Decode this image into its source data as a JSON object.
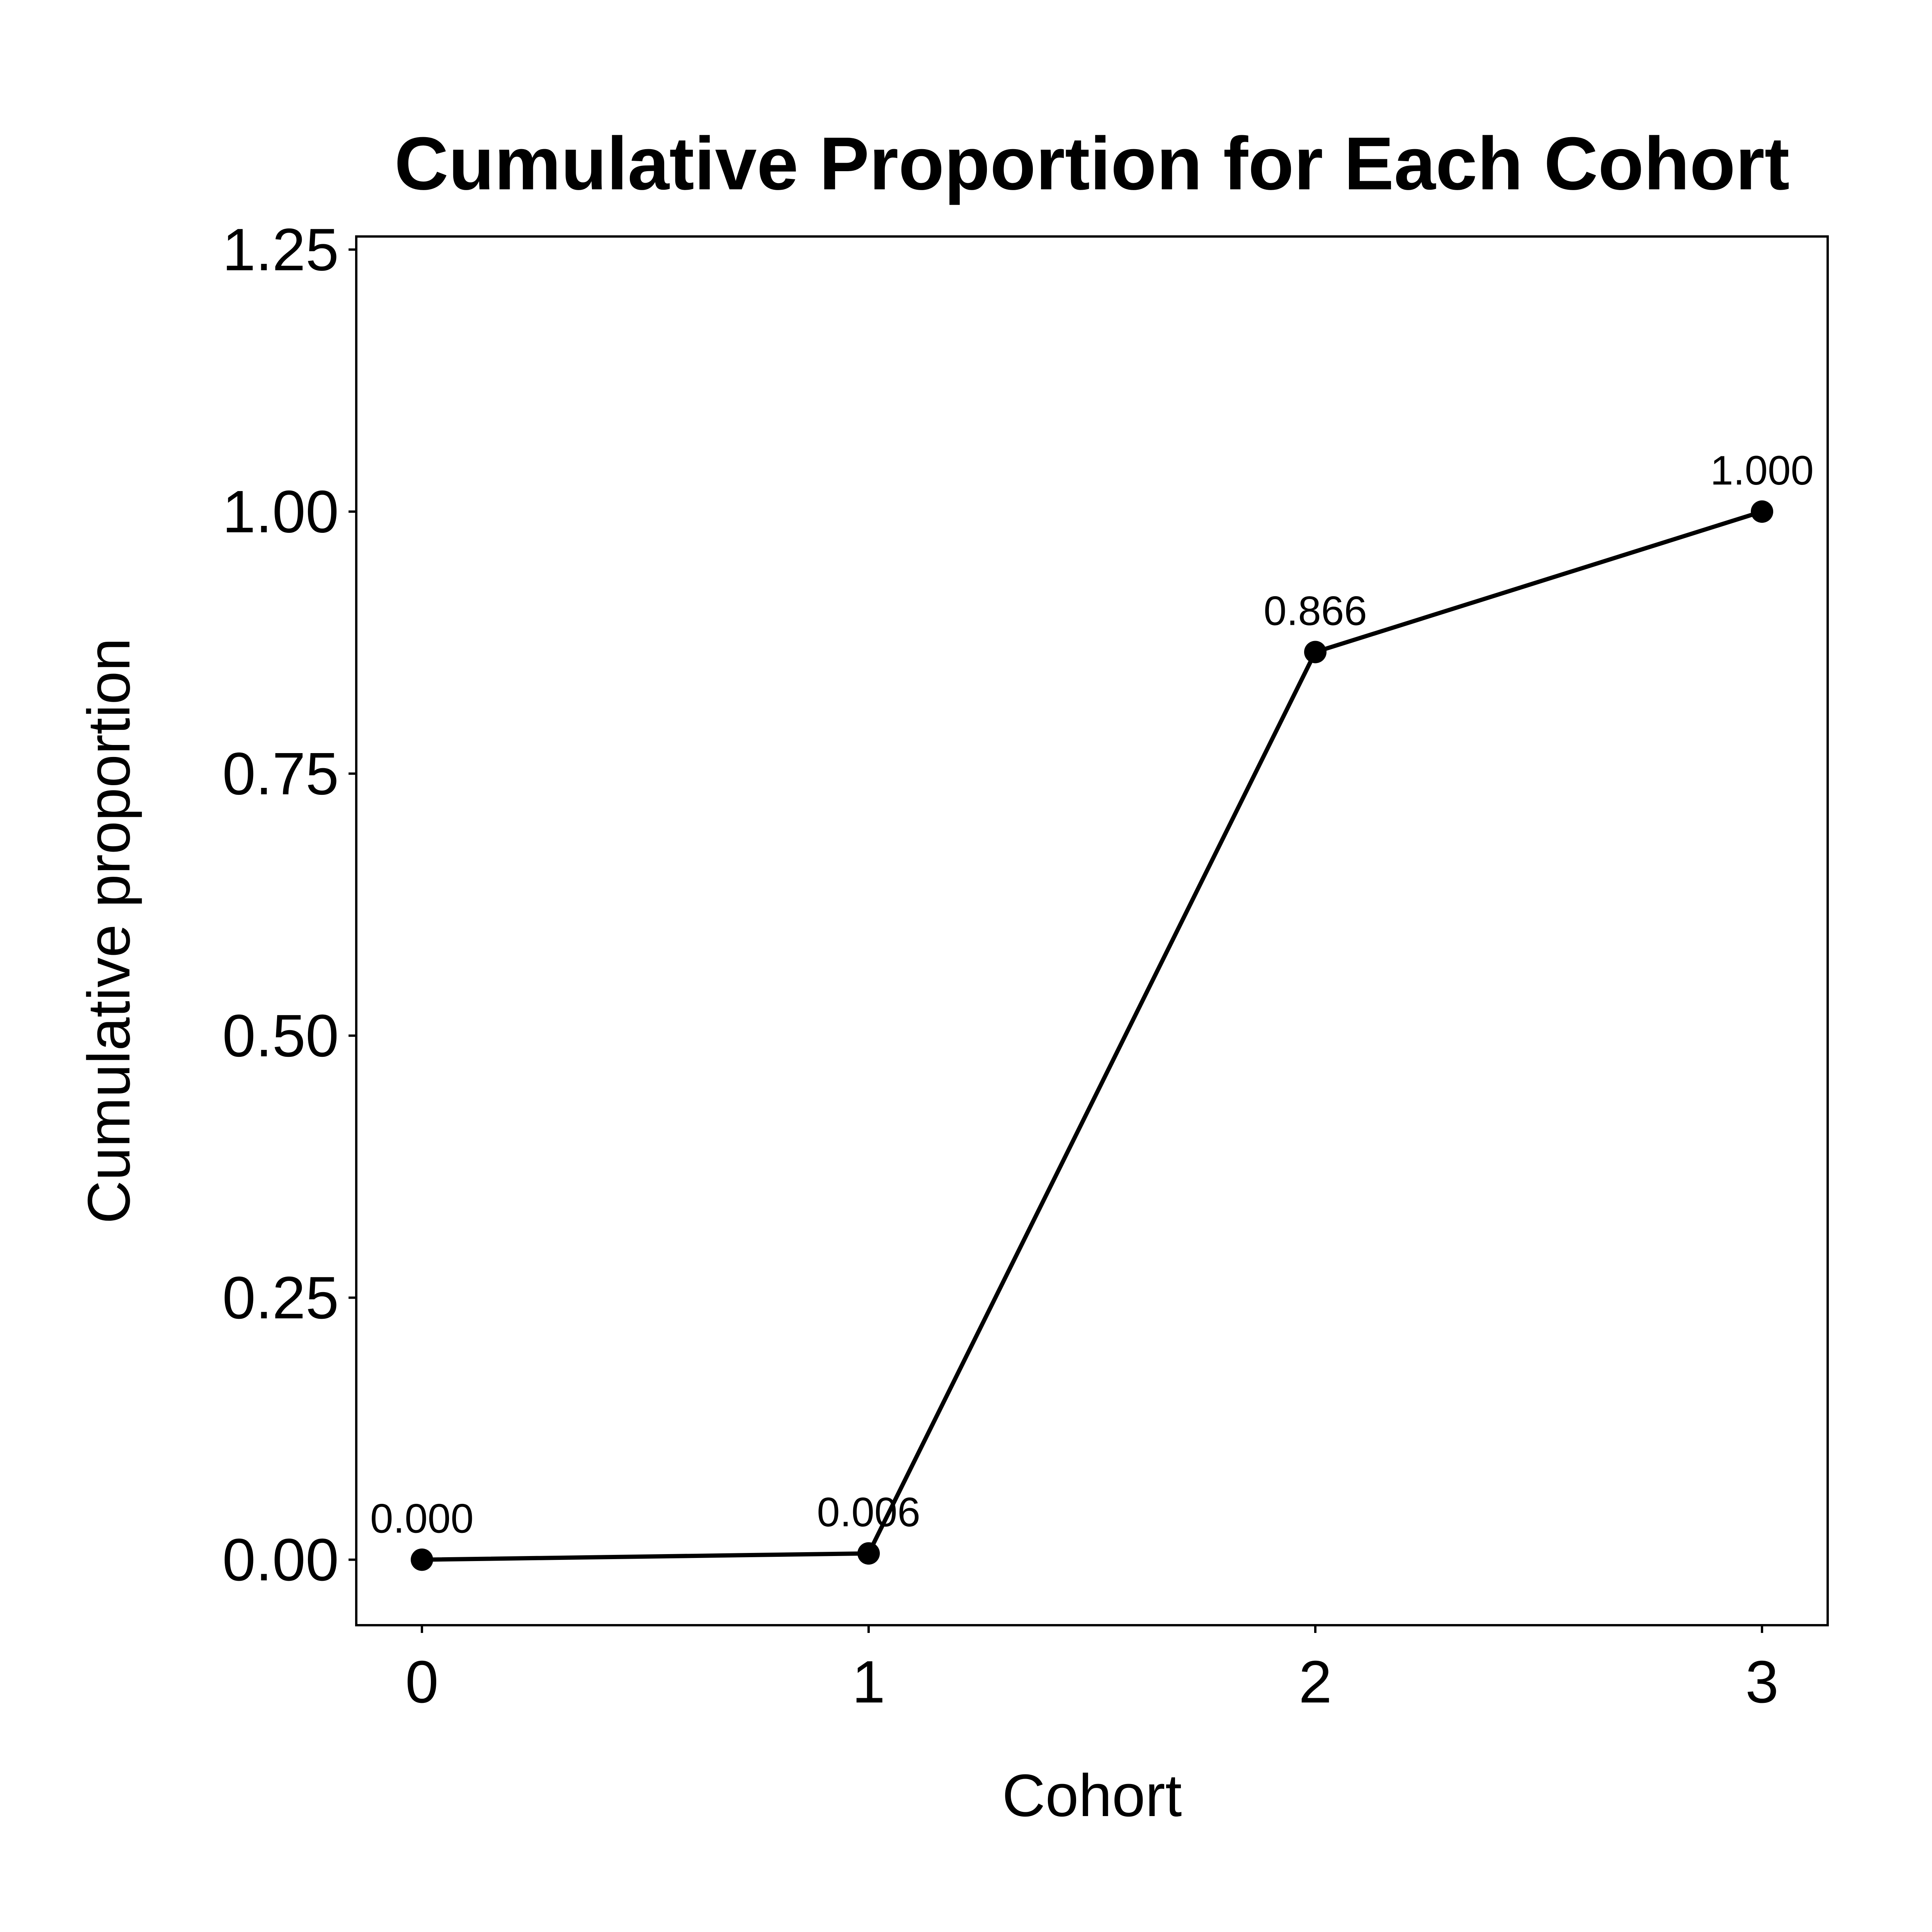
{
  "chart_data": {
    "type": "line",
    "title": "Cumulative Proportion for Each Cohort",
    "xlabel": "Cohort",
    "ylabel": "Cumulative proportion",
    "x": [
      0,
      1,
      2,
      3
    ],
    "series": [
      {
        "values": [
          0.0,
          0.006,
          0.866,
          1.0
        ],
        "labels": [
          "0.000",
          "0.006",
          "0.866",
          "1.000"
        ]
      }
    ],
    "xlim": [
      -0.147,
      3.147
    ],
    "ylim": [
      -0.0625,
      1.2625
    ],
    "xticks": [
      0,
      1,
      2,
      3
    ],
    "xtick_labels": [
      "0",
      "1",
      "2",
      "3"
    ],
    "yticks": [
      0,
      0.25,
      0.5,
      0.75,
      1.0,
      1.25
    ],
    "ytick_labels": [
      "0.00",
      "0.25",
      "0.50",
      "0.75",
      "1.00",
      "1.25"
    ],
    "grid": false,
    "line_color": "#000000",
    "marker_color": "#000000",
    "background": "#ffffff"
  }
}
